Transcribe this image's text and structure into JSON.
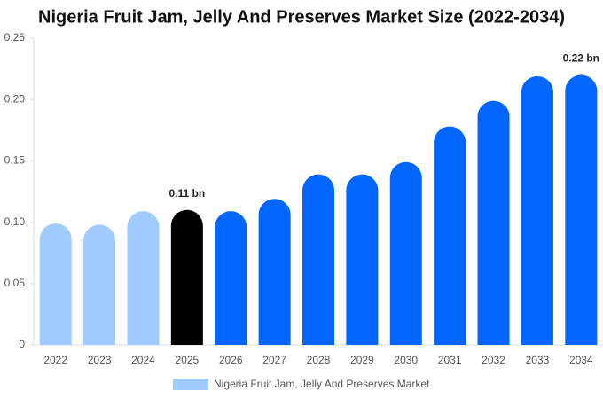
{
  "chart_data": {
    "type": "bar",
    "title": "Nigeria Fruit Jam, Jelly And Preserves Market Size (2022-2034)",
    "categories": [
      "2022",
      "2023",
      "2024",
      "2025",
      "2026",
      "2027",
      "2028",
      "2029",
      "2030",
      "2031",
      "2032",
      "2033",
      "2034"
    ],
    "series": [
      {
        "name": "Nigeria Fruit Jam, Jelly And Preserves Market",
        "color": "#a0cbff",
        "colors": [
          "#a0cbff",
          "#a0cbff",
          "#a0cbff",
          "#000000",
          "#0066ff",
          "#0066ff",
          "#0066ff",
          "#0066ff",
          "#0066ff",
          "#0066ff",
          "#0066ff",
          "#0066ff",
          "#0066ff"
        ],
        "values": [
          0.099,
          0.098,
          0.109,
          0.11,
          0.109,
          0.119,
          0.139,
          0.139,
          0.149,
          0.178,
          0.199,
          0.219,
          0.22
        ],
        "value_labels": [
          null,
          null,
          null,
          "0.11 bn",
          null,
          null,
          null,
          null,
          null,
          null,
          null,
          null,
          "0.22 bn"
        ]
      }
    ],
    "ylim": [
      0,
      0.25
    ],
    "yticks": [
      0,
      0.05,
      {
        "value": 0.1,
        "label": "0.10"
      },
      0.15,
      {
        "value": 0.2,
        "label": "0.20"
      },
      0.25
    ],
    "grid": false
  }
}
